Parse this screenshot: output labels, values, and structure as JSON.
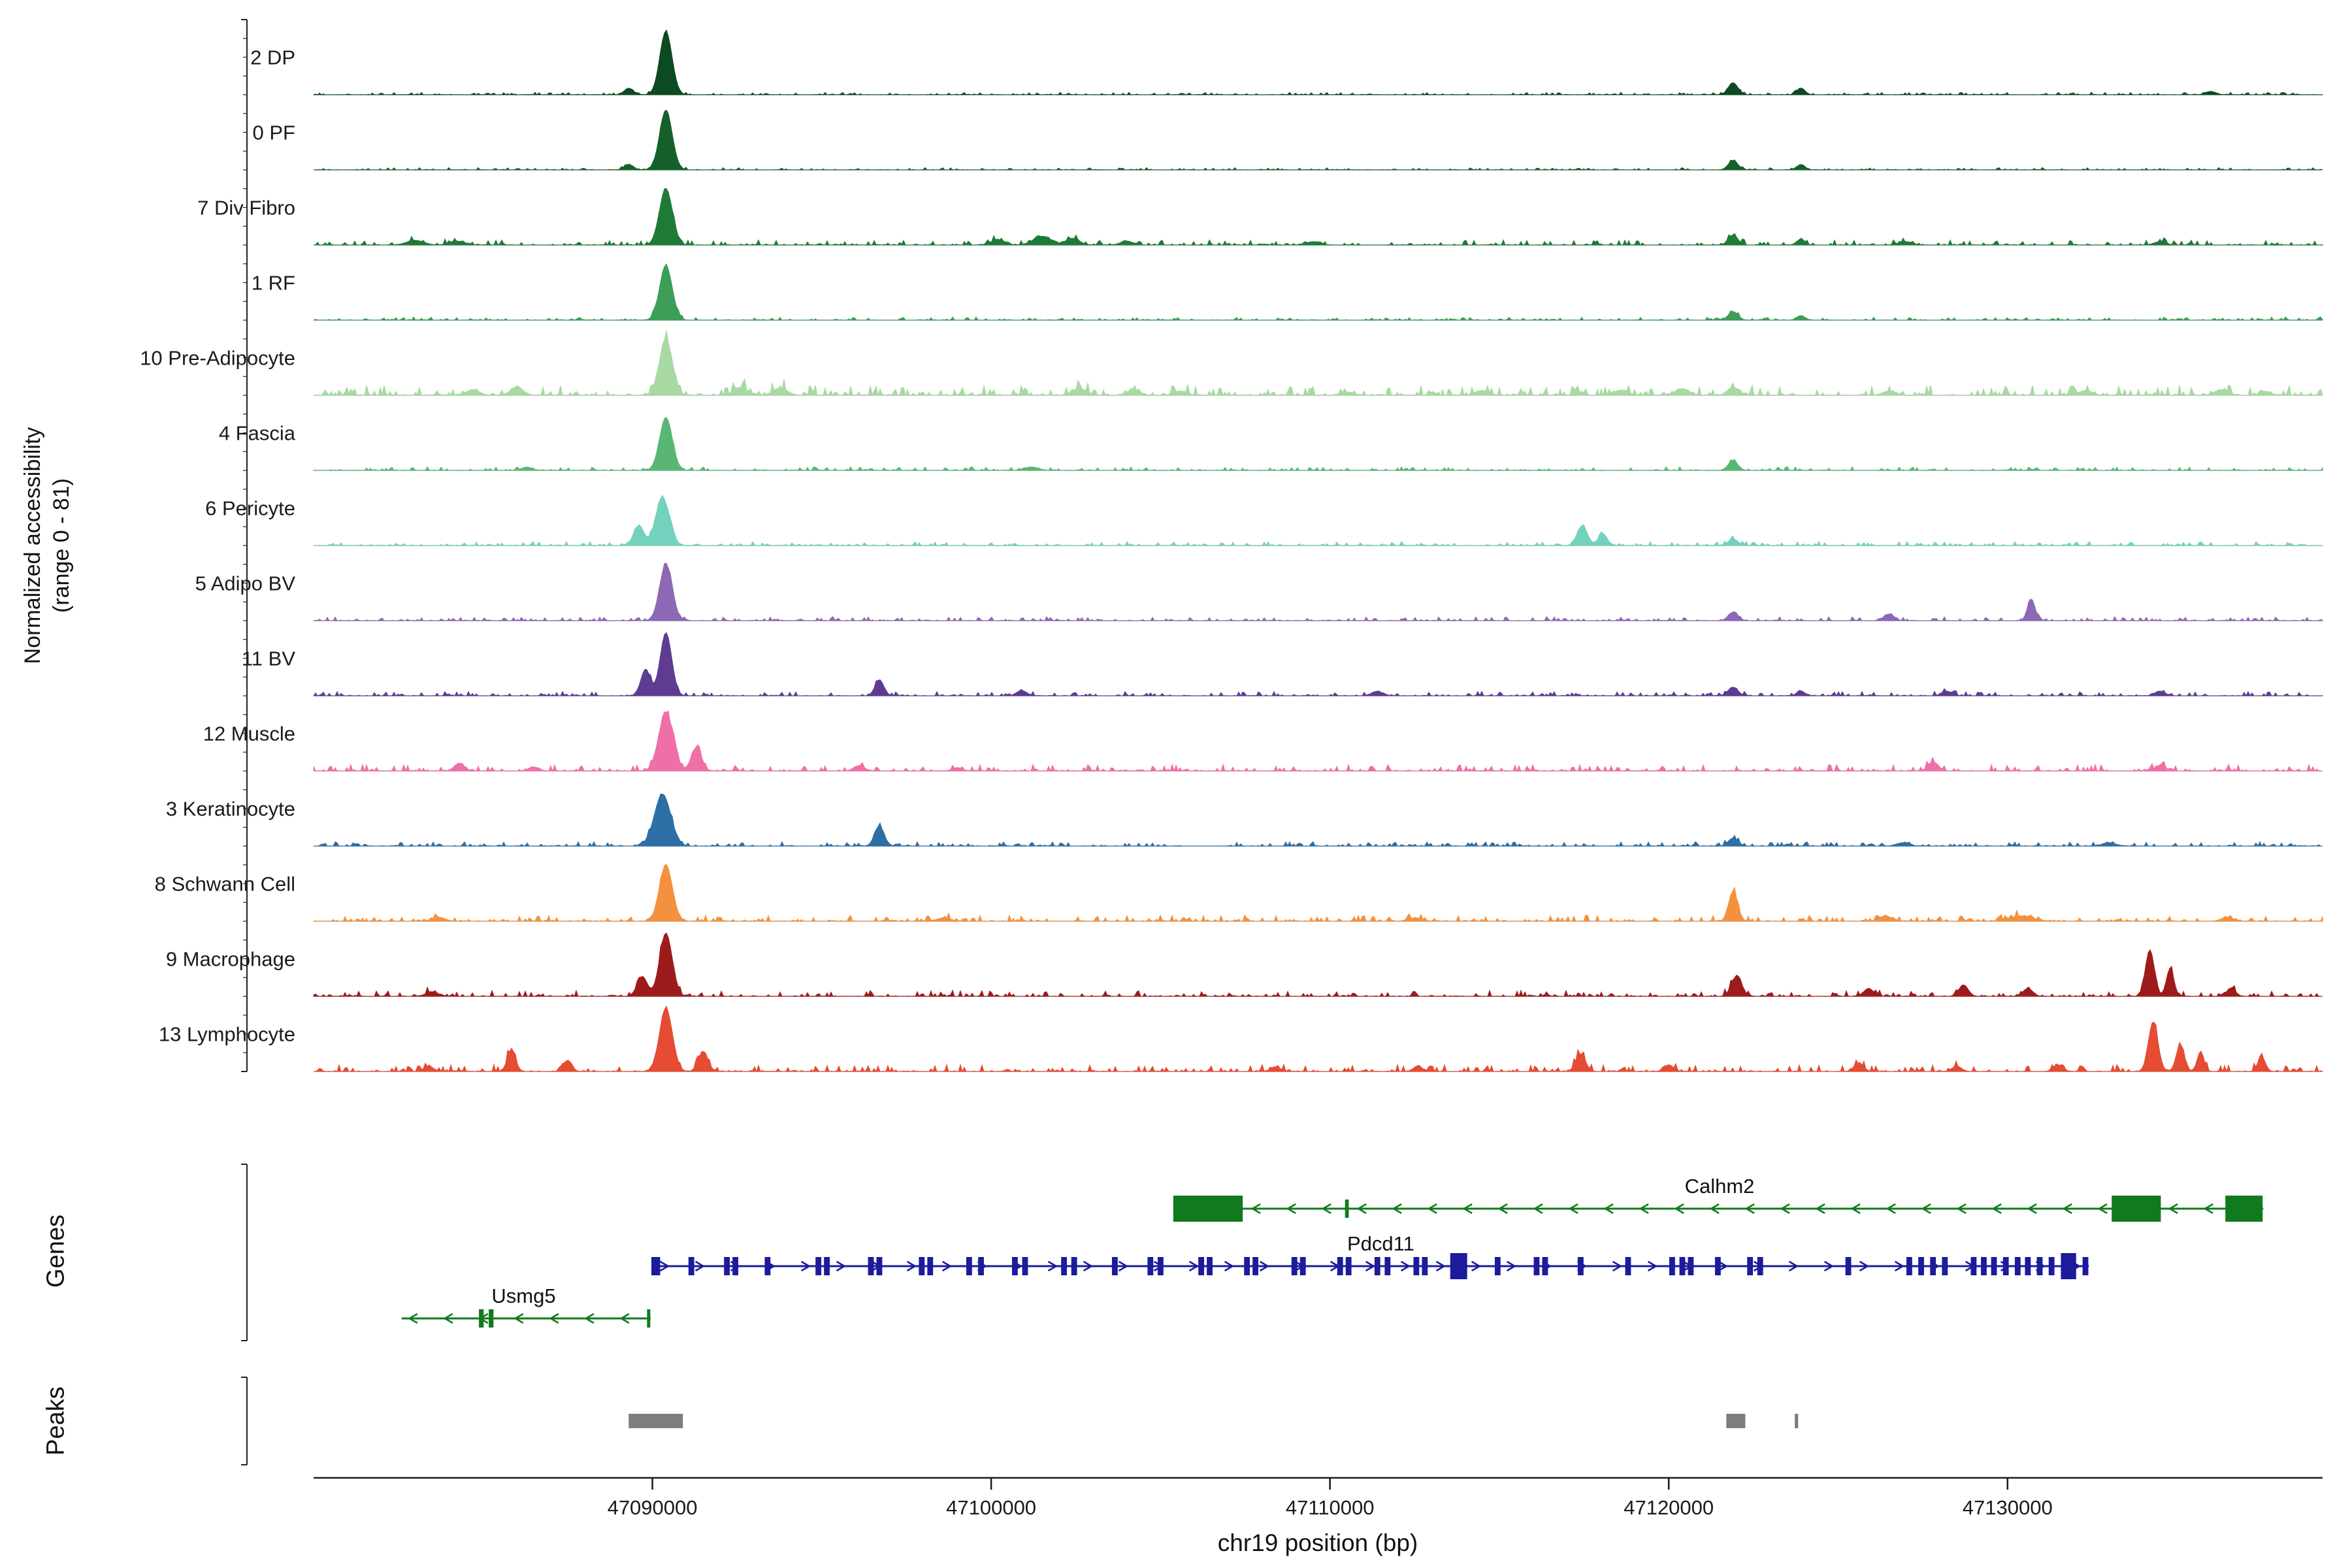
{
  "chart_data": {
    "type": "area",
    "description": "Genome browser coverage plot: normalized chromatin accessibility per cell-type cluster over chr19 region, with gene models and peak calls",
    "sections": {
      "tracks_label_line1": "Normalized accessibility",
      "tracks_label_line2": "(range 0 - 81)",
      "genes": "Genes",
      "peaks": "Peaks"
    },
    "x_axis": {
      "label": "chr19 position (bp)",
      "min": 47080000,
      "max": 47139300,
      "ticks": [
        47090000,
        47100000,
        47110000,
        47120000,
        47130000
      ]
    },
    "y_axis": {
      "per_track_range": [
        0,
        81
      ]
    },
    "tracks": [
      {
        "label": "2 DP",
        "color": "#0d4a21",
        "noise": 0.012,
        "bumps": [
          [
            47090400,
            0.95,
            180
          ],
          [
            47089300,
            0.1,
            130
          ],
          [
            47121900,
            0.18,
            140
          ],
          [
            47123900,
            0.1,
            120
          ],
          [
            47136000,
            0.05,
            150
          ]
        ]
      },
      {
        "label": "0 PF",
        "color": "#156029",
        "noise": 0.012,
        "bumps": [
          [
            47090400,
            0.9,
            185
          ],
          [
            47089300,
            0.08,
            130
          ],
          [
            47121900,
            0.14,
            140
          ],
          [
            47123900,
            0.08,
            120
          ]
        ]
      },
      {
        "label": "7 Div Fibro",
        "color": "#1f7a37",
        "noise": 0.025,
        "bumps": [
          [
            47090400,
            0.85,
            190
          ],
          [
            47083000,
            0.07,
            250
          ],
          [
            47084200,
            0.06,
            200
          ],
          [
            47100200,
            0.08,
            200
          ],
          [
            47101500,
            0.13,
            260
          ],
          [
            47102400,
            0.1,
            200
          ],
          [
            47104000,
            0.06,
            180
          ],
          [
            47109500,
            0.05,
            200
          ],
          [
            47121900,
            0.15,
            140
          ],
          [
            47123900,
            0.09,
            120
          ],
          [
            47127000,
            0.05,
            180
          ],
          [
            47134500,
            0.05,
            180
          ]
        ]
      },
      {
        "label": "1 RF",
        "color": "#3c9e57",
        "noise": 0.016,
        "bumps": [
          [
            47090400,
            0.82,
            185
          ],
          [
            47121900,
            0.13,
            140
          ],
          [
            47123900,
            0.07,
            120
          ]
        ]
      },
      {
        "label": "10 Pre-Adipocyte",
        "color": "#a8d9a2",
        "noise": 0.05,
        "bumps": [
          [
            47090400,
            0.85,
            190
          ],
          [
            47086000,
            0.13,
            180
          ],
          [
            47084700,
            0.08,
            200
          ],
          [
            47092600,
            0.12,
            200
          ],
          [
            47093800,
            0.1,
            200
          ],
          [
            47102600,
            0.1,
            220
          ],
          [
            47104200,
            0.08,
            200
          ],
          [
            47105600,
            0.06,
            200
          ],
          [
            47110500,
            0.05,
            200
          ],
          [
            47114500,
            0.07,
            200
          ],
          [
            47118600,
            0.08,
            200
          ],
          [
            47120400,
            0.1,
            200
          ],
          [
            47121900,
            0.12,
            160
          ],
          [
            47126500,
            0.06,
            200
          ],
          [
            47132300,
            0.07,
            200
          ],
          [
            47136300,
            0.08,
            200
          ],
          [
            47137600,
            0.06,
            150
          ]
        ]
      },
      {
        "label": "4 Fascia",
        "color": "#58b873",
        "noise": 0.018,
        "bumps": [
          [
            47090400,
            0.8,
            185
          ],
          [
            47086300,
            0.05,
            160
          ],
          [
            47101200,
            0.05,
            200
          ],
          [
            47121900,
            0.15,
            140
          ]
        ]
      },
      {
        "label": "6 Pericyte",
        "color": "#72d2bd",
        "noise": 0.02,
        "bumps": [
          [
            47090300,
            0.72,
            200
          ],
          [
            47089600,
            0.3,
            150
          ],
          [
            47117450,
            0.3,
            150
          ],
          [
            47118050,
            0.18,
            130
          ],
          [
            47121900,
            0.1,
            140
          ]
        ]
      },
      {
        "label": "5 Adipo BV",
        "color": "#8d68b5",
        "noise": 0.02,
        "bumps": [
          [
            47090400,
            0.85,
            185
          ],
          [
            47121900,
            0.13,
            140
          ],
          [
            47126500,
            0.1,
            150
          ],
          [
            47130700,
            0.33,
            110
          ]
        ]
      },
      {
        "label": "11 BV",
        "color": "#5e3c92",
        "noise": 0.022,
        "bumps": [
          [
            47090400,
            0.95,
            170
          ],
          [
            47089800,
            0.4,
            140
          ],
          [
            47096700,
            0.24,
            130
          ],
          [
            47100900,
            0.08,
            150
          ],
          [
            47111400,
            0.06,
            180
          ],
          [
            47121900,
            0.13,
            140
          ],
          [
            47123900,
            0.07,
            120
          ],
          [
            47128200,
            0.07,
            150
          ],
          [
            47134500,
            0.07,
            150
          ]
        ]
      },
      {
        "label": "12 Muscle",
        "color": "#ef6fa8",
        "noise": 0.032,
        "bumps": [
          [
            47090400,
            0.88,
            210
          ],
          [
            47091300,
            0.35,
            150
          ],
          [
            47084300,
            0.12,
            140
          ],
          [
            47086500,
            0.06,
            150
          ],
          [
            47096100,
            0.08,
            150
          ],
          [
            47099000,
            0.05,
            150
          ],
          [
            47127800,
            0.14,
            140
          ],
          [
            47134500,
            0.08,
            140
          ]
        ]
      },
      {
        "label": "3 Keratinocyte",
        "color": "#2d6ea6",
        "noise": 0.022,
        "bumps": [
          [
            47090300,
            0.78,
            240
          ],
          [
            47096700,
            0.3,
            140
          ],
          [
            47121900,
            0.12,
            140
          ],
          [
            47126900,
            0.05,
            180
          ],
          [
            47133000,
            0.05,
            200
          ]
        ]
      },
      {
        "label": "8 Schwann Cell",
        "color": "#f4913e",
        "noise": 0.03,
        "bumps": [
          [
            47090400,
            0.85,
            190
          ],
          [
            47083700,
            0.06,
            180
          ],
          [
            47098600,
            0.05,
            200
          ],
          [
            47112500,
            0.05,
            200
          ],
          [
            47121900,
            0.45,
            130
          ],
          [
            47126400,
            0.08,
            180
          ],
          [
            47130400,
            0.08,
            350
          ],
          [
            47136500,
            0.06,
            180
          ]
        ]
      },
      {
        "label": "9 Macrophage",
        "color": "#9e1b1b",
        "noise": 0.03,
        "bumps": [
          [
            47090400,
            0.95,
            185
          ],
          [
            47089700,
            0.3,
            150
          ],
          [
            47083500,
            0.07,
            180
          ],
          [
            47122000,
            0.3,
            150
          ],
          [
            47125900,
            0.12,
            140
          ],
          [
            47128700,
            0.17,
            140
          ],
          [
            47130600,
            0.12,
            140
          ],
          [
            47134200,
            0.7,
            130
          ],
          [
            47134800,
            0.42,
            110
          ],
          [
            47136600,
            0.12,
            130
          ]
        ]
      },
      {
        "label": "13 Lymphocyte",
        "color": "#e64b33",
        "noise": 0.035,
        "bumps": [
          [
            47090400,
            0.95,
            190
          ],
          [
            47091500,
            0.3,
            140
          ],
          [
            47085840,
            0.33,
            120
          ],
          [
            47087500,
            0.17,
            120
          ],
          [
            47083400,
            0.08,
            140
          ],
          [
            47108400,
            0.07,
            140
          ],
          [
            47112600,
            0.07,
            140
          ],
          [
            47117400,
            0.27,
            140
          ],
          [
            47120000,
            0.1,
            140
          ],
          [
            47125600,
            0.12,
            140
          ],
          [
            47128500,
            0.08,
            140
          ],
          [
            47131500,
            0.1,
            140
          ],
          [
            47134300,
            0.75,
            140
          ],
          [
            47135100,
            0.4,
            120
          ],
          [
            47135700,
            0.3,
            100
          ],
          [
            47137500,
            0.22,
            110
          ]
        ]
      }
    ],
    "genes": [
      {
        "name": "Calhm2",
        "color": "#117a1e",
        "strand": "-",
        "start": 47105400,
        "end": 47137550,
        "label_bp": 47121500,
        "exons": [
          [
            47106400,
            2050
          ],
          [
            47110500,
            110
          ],
          [
            47133800,
            1450
          ],
          [
            47136980,
            1100
          ]
        ]
      },
      {
        "name": "Pdcd11",
        "color": "#1b1b9c",
        "strand": "+",
        "start": 47090000,
        "end": 47132400,
        "label_bp": 47111500,
        "exons": [
          [
            47090100,
            260
          ],
          [
            47091150
          ],
          [
            47092200
          ],
          [
            47092450
          ],
          [
            47093400
          ],
          [
            47094900
          ],
          [
            47095150
          ],
          [
            47096450
          ],
          [
            47096700
          ],
          [
            47097950
          ],
          [
            47098200
          ],
          [
            47099350
          ],
          [
            47099700
          ],
          [
            47100700
          ],
          [
            47101000
          ],
          [
            47102150
          ],
          [
            47102450
          ],
          [
            47103650
          ],
          [
            47104700
          ],
          [
            47105000
          ],
          [
            47106200
          ],
          [
            47106450
          ],
          [
            47107550
          ],
          [
            47107800
          ],
          [
            47108950
          ],
          [
            47109200
          ],
          [
            47110300
          ],
          [
            47110550
          ],
          [
            47111400
          ],
          [
            47111700
          ],
          [
            47112550
          ],
          [
            47112800
          ],
          [
            47113800,
            500
          ],
          [
            47114950
          ],
          [
            47116100
          ],
          [
            47116350
          ],
          [
            47117400
          ],
          [
            47118800
          ],
          [
            47120100
          ],
          [
            47120400
          ],
          [
            47120650
          ],
          [
            47121450
          ],
          [
            47122400
          ],
          [
            47122700
          ],
          [
            47125300
          ],
          [
            47127100
          ],
          [
            47127450
          ],
          [
            47127800
          ],
          [
            47128150
          ],
          [
            47129000
          ],
          [
            47129300
          ],
          [
            47129600
          ],
          [
            47129950
          ],
          [
            47130300
          ],
          [
            47130600
          ],
          [
            47130950
          ],
          [
            47131300
          ],
          [
            47131800,
            450
          ],
          [
            47132300
          ]
        ]
      },
      {
        "name": "Usmg5",
        "color": "#117a1e",
        "strand": "-",
        "start": 47082600,
        "end": 47089950,
        "label_bp": 47086200,
        "exons": [
          [
            47084950,
            140
          ],
          [
            47085240,
            140
          ],
          [
            47089890,
            90
          ]
        ]
      }
    ],
    "peaks": [
      [
        47089300,
        47090900
      ],
      [
        47121700,
        47122260
      ],
      [
        47123720,
        47123820
      ]
    ],
    "peak_color": "#7d7d7d"
  }
}
